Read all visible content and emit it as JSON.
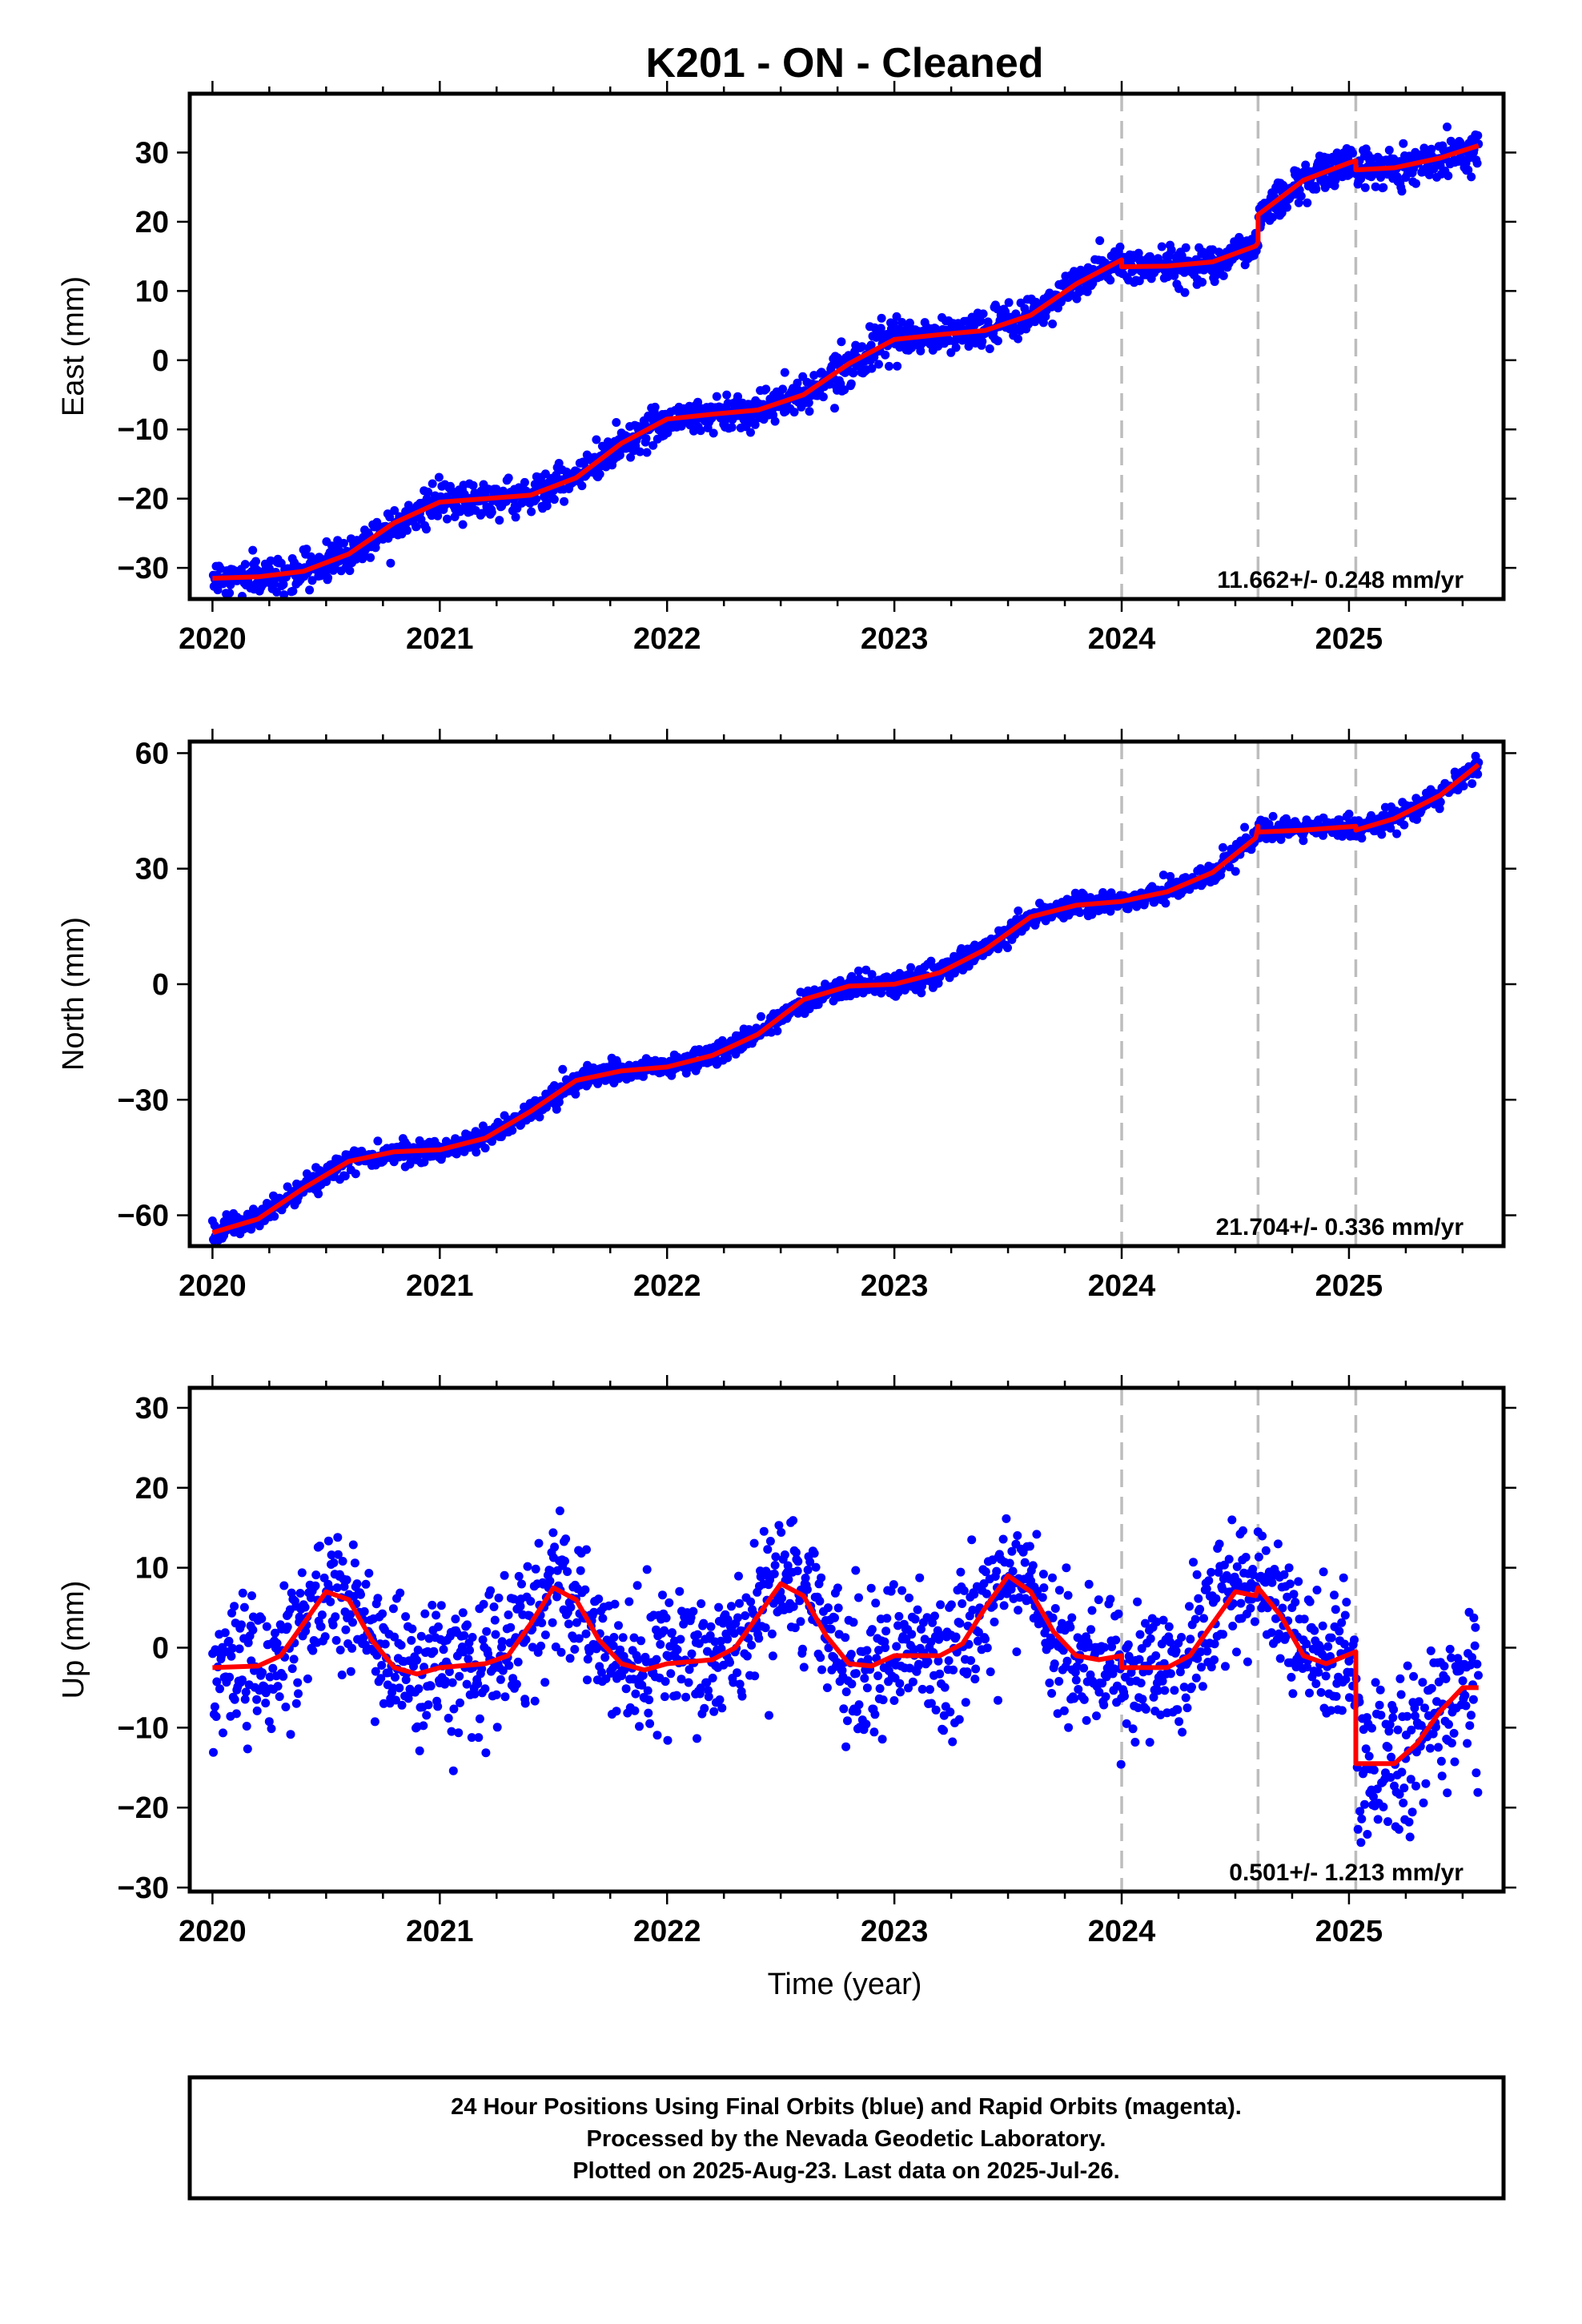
{
  "chart_data": {
    "title": "K201  - ON - Cleaned",
    "type": "scatter",
    "xlabel": "Time (year)",
    "xlim": [
      2019.9,
      2025.68
    ],
    "x_ticks": [
      2020,
      2021,
      2022,
      2023,
      2024,
      2025
    ],
    "x_tick_labels": [
      "2020",
      "2021",
      "2022",
      "2023",
      "2024",
      "2025"
    ],
    "data_start": 2020.0,
    "data_end": 2025.57,
    "vertical_dashed_lines": [
      2024.0,
      2024.6,
      2025.03
    ],
    "series_colors": {
      "points": "#0000ff",
      "model": "#ff0000",
      "event_lines": "#bdbdbd"
    },
    "panels": [
      {
        "ylabel": "East (mm)",
        "ylim": [
          -34.5,
          38.5
        ],
        "y_ticks": [
          -30,
          -20,
          -10,
          0,
          10,
          20,
          30
        ],
        "y_tick_labels": [
          "−30",
          "−20",
          "−10",
          "0",
          "10",
          "20",
          "30"
        ],
        "rate_text": "11.662+/- 0.248 mm/yr",
        "scatter_sd": 1.3,
        "model_points": [
          [
            2020.0,
            -31.5
          ],
          [
            2020.2,
            -31.3
          ],
          [
            2020.4,
            -30.5
          ],
          [
            2020.6,
            -28
          ],
          [
            2020.8,
            -23.5
          ],
          [
            2021.0,
            -20.5
          ],
          [
            2021.2,
            -20
          ],
          [
            2021.4,
            -19.5
          ],
          [
            2021.6,
            -17
          ],
          [
            2021.8,
            -12
          ],
          [
            2022.0,
            -8.5
          ],
          [
            2022.2,
            -7.8
          ],
          [
            2022.4,
            -7.2
          ],
          [
            2022.6,
            -5
          ],
          [
            2022.8,
            -0.5
          ],
          [
            2023.0,
            3
          ],
          [
            2023.2,
            3.7
          ],
          [
            2023.4,
            4.3
          ],
          [
            2023.6,
            6.5
          ],
          [
            2023.8,
            11
          ],
          [
            2024.0,
            14.5
          ],
          [
            2024.0,
            13.5
          ],
          [
            2024.2,
            13.6
          ],
          [
            2024.4,
            14.2
          ],
          [
            2024.59,
            16.5
          ],
          [
            2024.6,
            17
          ],
          [
            2024.6,
            21
          ],
          [
            2024.8,
            26
          ],
          [
            2025.0,
            28.5
          ],
          [
            2025.03,
            28.8
          ],
          [
            2025.03,
            27.5
          ],
          [
            2025.2,
            27.8
          ],
          [
            2025.4,
            29.2
          ],
          [
            2025.57,
            31
          ]
        ]
      },
      {
        "ylabel": "North (mm)",
        "ylim": [
          -68,
          63
        ],
        "y_ticks": [
          -60,
          -30,
          0,
          30,
          60
        ],
        "y_tick_labels": [
          "−60",
          "−30",
          "0",
          "30",
          "60"
        ],
        "rate_text": "21.704+/- 0.336 mm/yr",
        "scatter_sd": 1.4,
        "model_points": [
          [
            2020.0,
            -64.5
          ],
          [
            2020.2,
            -61
          ],
          [
            2020.4,
            -53
          ],
          [
            2020.6,
            -46
          ],
          [
            2020.8,
            -43.5
          ],
          [
            2021.0,
            -43
          ],
          [
            2021.2,
            -40
          ],
          [
            2021.4,
            -33
          ],
          [
            2021.6,
            -25
          ],
          [
            2021.8,
            -22.5
          ],
          [
            2022.0,
            -21.5
          ],
          [
            2022.2,
            -18.5
          ],
          [
            2022.4,
            -13
          ],
          [
            2022.6,
            -4
          ],
          [
            2022.8,
            -0.5
          ],
          [
            2023.0,
            0
          ],
          [
            2023.2,
            3
          ],
          [
            2023.4,
            9
          ],
          [
            2023.6,
            17.5
          ],
          [
            2023.8,
            20.5
          ],
          [
            2024.0,
            21.5
          ],
          [
            2024.2,
            24
          ],
          [
            2024.4,
            29
          ],
          [
            2024.59,
            38
          ],
          [
            2024.6,
            41
          ],
          [
            2024.6,
            39.5
          ],
          [
            2024.8,
            40
          ],
          [
            2025.03,
            41
          ],
          [
            2025.03,
            40
          ],
          [
            2025.2,
            43
          ],
          [
            2025.4,
            49
          ],
          [
            2025.57,
            57
          ]
        ]
      },
      {
        "ylabel": "Up (mm)",
        "ylim": [
          -30.5,
          32.5
        ],
        "y_ticks": [
          -30,
          -20,
          -10,
          0,
          10,
          20,
          30
        ],
        "y_tick_labels": [
          "−30",
          "−20",
          "−10",
          "0",
          "10",
          "20",
          "30"
        ],
        "rate_text": "0.501+/- 1.213 mm/yr",
        "scatter_sd": 4.2,
        "model_points": [
          [
            2020.0,
            -2.5
          ],
          [
            2020.2,
            -2.3
          ],
          [
            2020.3,
            -1
          ],
          [
            2020.4,
            3
          ],
          [
            2020.5,
            7
          ],
          [
            2020.6,
            6
          ],
          [
            2020.7,
            1
          ],
          [
            2020.8,
            -2.5
          ],
          [
            2020.9,
            -3.3
          ],
          [
            2021.0,
            -2.5
          ],
          [
            2021.2,
            -2
          ],
          [
            2021.3,
            -1
          ],
          [
            2021.4,
            3
          ],
          [
            2021.5,
            7.5
          ],
          [
            2021.6,
            6
          ],
          [
            2021.7,
            1
          ],
          [
            2021.8,
            -2
          ],
          [
            2021.9,
            -2.8
          ],
          [
            2022.0,
            -2
          ],
          [
            2022.2,
            -1.5
          ],
          [
            2022.3,
            0
          ],
          [
            2022.4,
            4
          ],
          [
            2022.5,
            8
          ],
          [
            2022.6,
            6.5
          ],
          [
            2022.7,
            1.5
          ],
          [
            2022.8,
            -2
          ],
          [
            2022.9,
            -2.3
          ],
          [
            2023.0,
            -1
          ],
          [
            2023.2,
            -1
          ],
          [
            2023.3,
            0.5
          ],
          [
            2023.4,
            5
          ],
          [
            2023.5,
            9
          ],
          [
            2023.6,
            7
          ],
          [
            2023.7,
            2
          ],
          [
            2023.8,
            -1
          ],
          [
            2023.9,
            -1.5
          ],
          [
            2024.0,
            -1
          ],
          [
            2024.0,
            -2.5
          ],
          [
            2024.2,
            -2.5
          ],
          [
            2024.3,
            -1
          ],
          [
            2024.4,
            3
          ],
          [
            2024.5,
            7
          ],
          [
            2024.59,
            6.5
          ],
          [
            2024.6,
            7.5
          ],
          [
            2024.7,
            4
          ],
          [
            2024.8,
            -1
          ],
          [
            2024.9,
            -2
          ],
          [
            2025.03,
            -0.5
          ],
          [
            2025.03,
            -14.5
          ],
          [
            2025.2,
            -14.5
          ],
          [
            2025.3,
            -12
          ],
          [
            2025.4,
            -8
          ],
          [
            2025.5,
            -5
          ],
          [
            2025.57,
            -5
          ]
        ]
      }
    ]
  },
  "footer": {
    "line1": "24 Hour Positions Using Final Orbits (blue) and Rapid Orbits (magenta).",
    "line2": "Processed by the Nevada Geodetic Laboratory.",
    "line3": "Plotted on 2025-Aug-23. Last data on 2025-Jul-26."
  }
}
